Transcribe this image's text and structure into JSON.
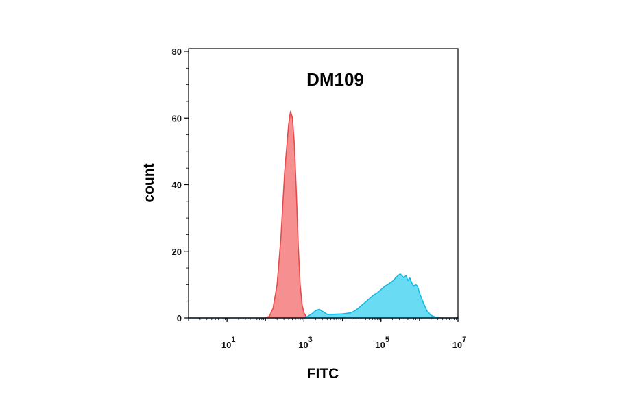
{
  "chart_data": {
    "type": "area",
    "title": "DM109",
    "xlabel": "FITC",
    "ylabel": "count",
    "xscale": "log",
    "xlim": [
      1,
      10000000
    ],
    "ylim": [
      0,
      80
    ],
    "x_ticks": [
      {
        "base": "10",
        "exp": "1",
        "value": 10
      },
      {
        "base": "10",
        "exp": "3",
        "value": 1000
      },
      {
        "base": "10",
        "exp": "5",
        "value": 100000
      },
      {
        "base": "10",
        "exp": "7",
        "value": 10000000
      }
    ],
    "y_ticks": [
      {
        "label": "0",
        "value": 0
      },
      {
        "label": "20",
        "value": 20
      },
      {
        "label": "40",
        "value": 40
      },
      {
        "label": "60",
        "value": 60
      },
      {
        "label": "80",
        "value": 80
      }
    ],
    "series": [
      {
        "color": "#f47c7c",
        "edge": "#e84a4a",
        "x": [
          1,
          100,
          126,
          158,
          200,
          251,
          316,
          398,
          447,
          501,
          562,
          631,
          708,
          794,
          891,
          1000,
          1122,
          1259,
          1585,
          2000,
          10000000
        ],
        "y": [
          0,
          0,
          0.5,
          3,
          10,
          24,
          44,
          58,
          62,
          60,
          52,
          38,
          22,
          10,
          4,
          1.5,
          0.5,
          0,
          0,
          0,
          0
        ]
      },
      {
        "color": "#4fd6f2",
        "edge": "#12b8e2",
        "x": [
          1,
          1000,
          1259,
          1585,
          1995,
          2512,
          3162,
          3981,
          5012,
          6310,
          10000,
          15849,
          19953,
          25119,
          31623,
          39811,
          50119,
          63096,
          79433,
          100000,
          125893,
          158489,
          199526,
          251189,
          316228,
          398107,
          446684,
          501187,
          562341,
          630957,
          707946,
          794328,
          891251,
          1000000,
          1258925,
          1584893,
          1995262,
          2511886,
          3162278,
          3981072,
          10000000
        ],
        "y": [
          0,
          0,
          0.5,
          1.2,
          2.2,
          2.6,
          1.8,
          1.1,
          1.0,
          1.1,
          1.2,
          1.5,
          2.0,
          2.8,
          3.8,
          4.8,
          5.8,
          6.8,
          7.5,
          8.5,
          9.5,
          10.2,
          11.0,
          12.3,
          13.2,
          12.0,
          12.8,
          11.2,
          12.0,
          10.5,
          9.5,
          10.0,
          9.5,
          7.5,
          4.5,
          2.0,
          0.8,
          0.3,
          0.1,
          0,
          0
        ]
      }
    ]
  }
}
